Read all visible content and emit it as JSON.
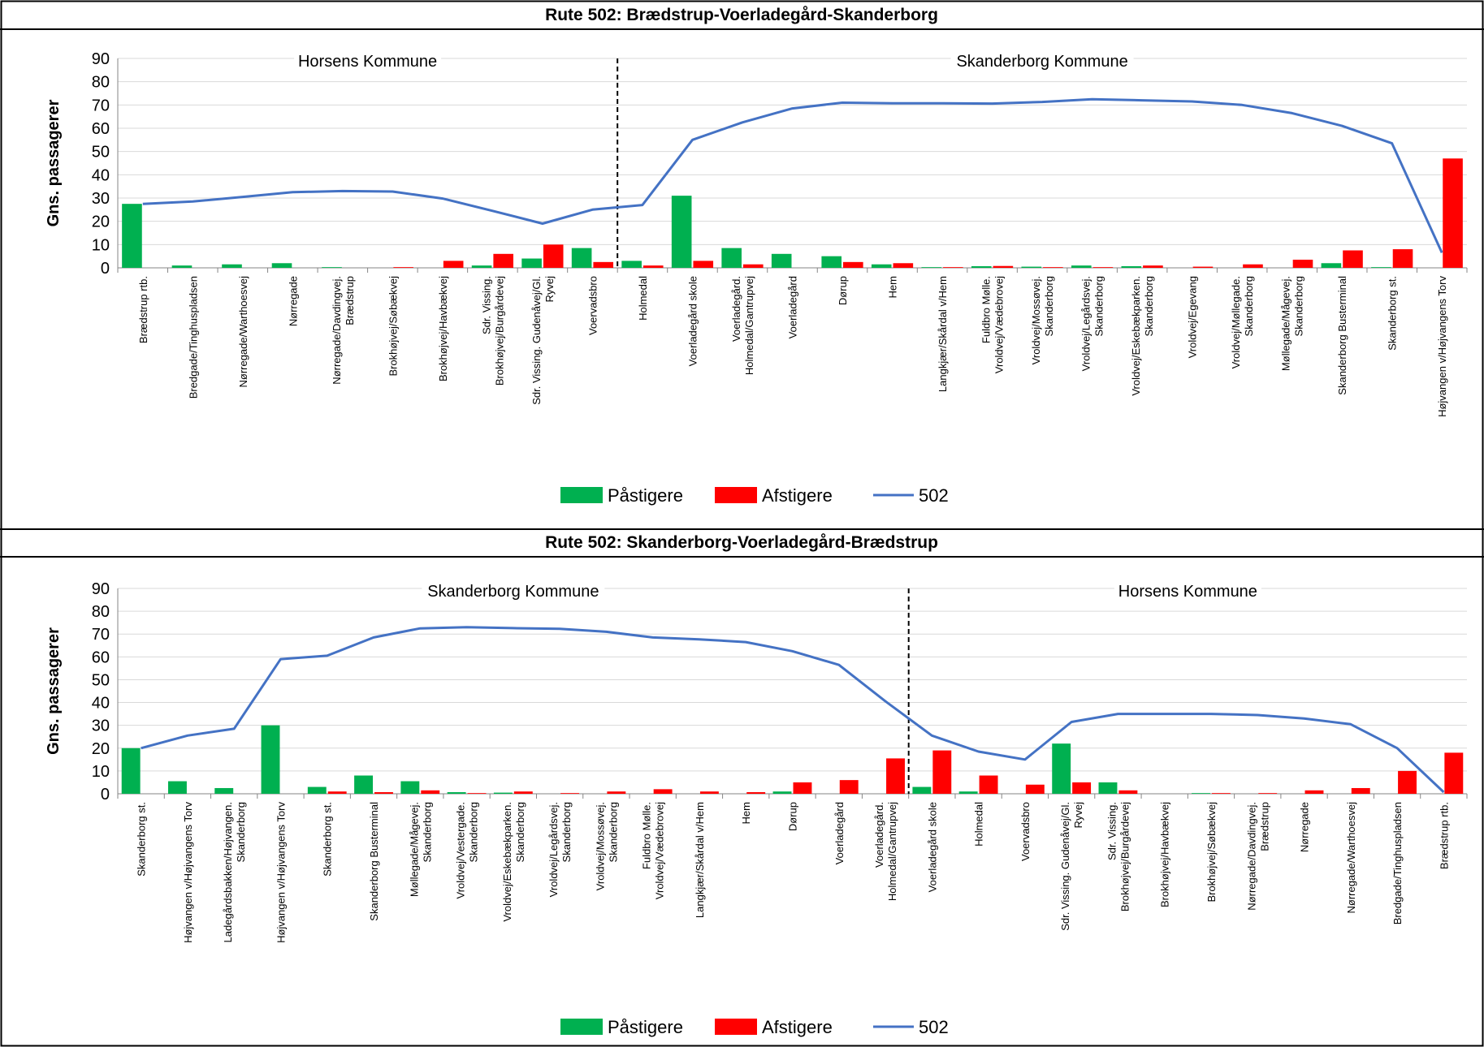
{
  "chart_data": [
    {
      "type": "bar",
      "title": "Rute 502: Brædstrup-Voerladegård-Skanderborg",
      "ylabel": "Gns. passagerer",
      "xlabel": "",
      "ylim": [
        0,
        90
      ],
      "yticks": [
        "0",
        "10",
        "20",
        "30",
        "40",
        "50",
        "60",
        "70",
        "80",
        "90"
      ],
      "regions": [
        "Horsens Kommune",
        "Skanderborg Kommune"
      ],
      "divider_after_index": 9,
      "legend": [
        "Påstigere",
        "Afstigere",
        "502"
      ],
      "legend_position": "bottom",
      "colors": {
        "board": "#00B050",
        "alight": "#FF0000",
        "line": "#4472C4"
      },
      "categories": [
        [
          "Brædstrup rtb."
        ],
        [
          "Bredgade/Tinghuspladsen"
        ],
        [
          "Nørregade/Warthoesvej"
        ],
        [
          "Nørregade"
        ],
        [
          "Nørregade/Davdingvej.",
          "Brædstrup"
        ],
        [
          "Brokhøjvej/Søbækvej"
        ],
        [
          "Brokhøjvej/Havbækvej"
        ],
        [
          "Sdr. Vissing.",
          "Brokhøjvej/Burgårdevej"
        ],
        [
          "Sdr. Vissing. Gudenåvej/Gl.",
          "Ryvej"
        ],
        [
          "Voervadsbro"
        ],
        [
          "Holmedal"
        ],
        [
          "Voerladegård skole"
        ],
        [
          "Voerladegård.",
          "Holmedal/Gantrupvej"
        ],
        [
          "Voerladegård"
        ],
        [
          "Dørup"
        ],
        [
          "Hem"
        ],
        [
          "Langkjær/Skårdal v/Hem"
        ],
        [
          "Fuldbro Mølle.",
          "Vroldvej/Vædebrovej"
        ],
        [
          "Vroldvej/Mossøvej.",
          "Skanderborg"
        ],
        [
          "Vroldvej/Legårdsvej.",
          "Skanderborg"
        ],
        [
          "Vroldvej/Eskebækparken.",
          "Skanderborg"
        ],
        [
          "Vroldvej/Egevang"
        ],
        [
          "Vroldvej/Møllegade.",
          "Skanderborg"
        ],
        [
          "Møllegade/Mågevej.",
          "Skanderborg"
        ],
        [
          "Skanderborg Busterminal"
        ],
        [
          "Skanderborg st."
        ],
        [
          "Højvangen v/Højvangens Torv"
        ]
      ],
      "series": [
        {
          "name": "Påstigere",
          "values": [
            27.5,
            1,
            1.5,
            2,
            0.3,
            0,
            0,
            1,
            4,
            8.5,
            3,
            31,
            8.5,
            6,
            5,
            1.5,
            0.3,
            0.7,
            0.5,
            1,
            0.7,
            0,
            0,
            0,
            2,
            0.3,
            0
          ]
        },
        {
          "name": "Afstigere",
          "values": [
            0,
            0,
            0,
            0,
            0,
            0.3,
            3,
            6,
            10,
            2.5,
            1,
            3,
            1.5,
            0,
            2.5,
            2,
            0.3,
            0.8,
            0.3,
            0.3,
            1,
            0.5,
            1.5,
            3.5,
            7.5,
            8,
            47
          ]
        },
        {
          "name": "502",
          "values": [
            27.5,
            28.5,
            30.5,
            32.5,
            33,
            32.8,
            29.8,
            24.5,
            19,
            25,
            27,
            55,
            62.5,
            68.5,
            71,
            70.7,
            70.7,
            70.6,
            71.3,
            72.5,
            72,
            71.5,
            70,
            66.5,
            61,
            53.5,
            6.5
          ]
        }
      ]
    },
    {
      "type": "bar",
      "title": "Rute 502: Skanderborg-Voerladegård-Brædstrup",
      "ylabel": "Gns. passagerer",
      "xlabel": "",
      "ylim": [
        0,
        90
      ],
      "yticks": [
        "0",
        "10",
        "20",
        "30",
        "40",
        "50",
        "60",
        "70",
        "80",
        "90"
      ],
      "regions": [
        "Skanderborg Kommune",
        "Horsens Kommune"
      ],
      "divider_after_index": 16,
      "legend": [
        "Påstigere",
        "Afstigere",
        "502"
      ],
      "legend_position": "bottom",
      "colors": {
        "board": "#00B050",
        "alight": "#FF0000",
        "line": "#4472C4"
      },
      "categories": [
        [
          "Skanderborg st."
        ],
        [
          "Højvangen v/Højvangens Torv"
        ],
        [
          "Ladegårdsbakken/Højvangen.",
          "Skanderborg"
        ],
        [
          "Højvangen v/Højvangens Torv"
        ],
        [
          "Skanderborg st."
        ],
        [
          "Skanderborg Busterminal"
        ],
        [
          "Møllegade/Mågevej.",
          "Skanderborg"
        ],
        [
          "Vroldvej/Vestergade.",
          "Skanderborg"
        ],
        [
          "Vroldvej/Eskebækparken.",
          "Skanderborg"
        ],
        [
          "Vroldvej/Legårdsvej.",
          "Skanderborg"
        ],
        [
          "Vroldvej/Mossøvej.",
          "Skanderborg"
        ],
        [
          "Fuldbro Mølle.",
          "Vroldvej/Vædebrovej"
        ],
        [
          "Langkjær/Skårdal v/Hem"
        ],
        [
          "Hem"
        ],
        [
          "Dørup"
        ],
        [
          "Voerladegård"
        ],
        [
          "Voerladegård.",
          "Holmedal/Gantrupvej"
        ],
        [
          "Voerladegård skole"
        ],
        [
          "Holmedal"
        ],
        [
          "Voervadsbro"
        ],
        [
          "Sdr. Vissing. Gudenåvej/Gl.",
          "Ryvej"
        ],
        [
          "Sdr. Vissing.",
          "Brokhøjvej/Burgårdevej"
        ],
        [
          "Brokhøjvej/Havbækvej"
        ],
        [
          "Brokhøjvej/Søbækvej"
        ],
        [
          "Nørregade/Davdingvej.",
          "Brædstrup"
        ],
        [
          "Nørregade"
        ],
        [
          "Nørregade/Warthoesvej"
        ],
        [
          "Bredgade/Tinghuspladsen"
        ],
        [
          "Brædstrup rtb."
        ]
      ],
      "series": [
        {
          "name": "Påstigere",
          "values": [
            20,
            5.5,
            2.5,
            30,
            3,
            8,
            5.5,
            0.7,
            0.5,
            0,
            0,
            0,
            0,
            0,
            1,
            0,
            0,
            3,
            1,
            0,
            22,
            5,
            0,
            0.3,
            0,
            0,
            0,
            0,
            0
          ]
        },
        {
          "name": "Afstigere",
          "values": [
            0,
            0,
            0,
            0,
            1,
            0.7,
            1.5,
            0.3,
            1,
            0.3,
            1,
            2,
            1,
            0.7,
            5,
            6,
            15.5,
            19,
            8,
            4,
            5,
            1.5,
            0,
            0.3,
            0.3,
            1.5,
            2.5,
            10,
            18
          ]
        },
        {
          "name": "502",
          "values": [
            20,
            25.5,
            28.5,
            59,
            60.5,
            68.5,
            72.5,
            73,
            72.6,
            72.3,
            71,
            68.5,
            67.7,
            66.5,
            62.5,
            56.5,
            40.5,
            25.5,
            18.5,
            15,
            31.5,
            35,
            35,
            35,
            34.5,
            33,
            30.5,
            20,
            0.7
          ]
        }
      ]
    }
  ]
}
